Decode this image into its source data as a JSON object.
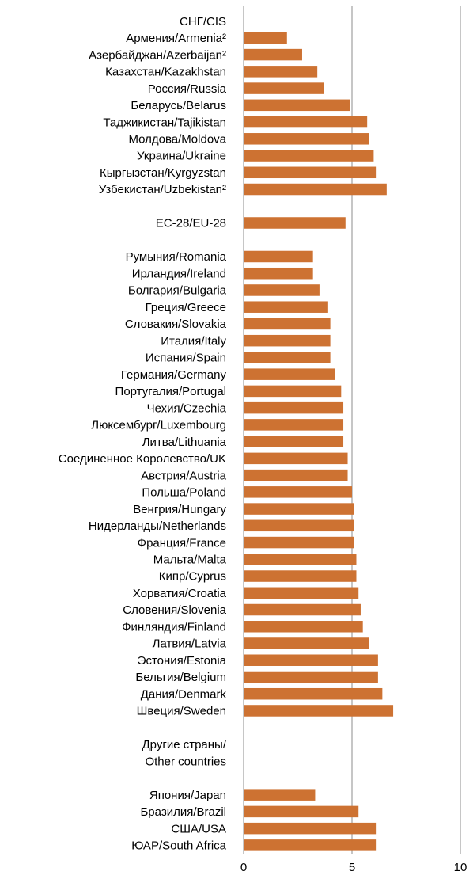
{
  "chart_data": {
    "type": "bar",
    "orientation": "horizontal",
    "bar_color": "#CD7232",
    "grid": true,
    "xlim": [
      0,
      10
    ],
    "xticks": [
      "0",
      "5",
      "10"
    ],
    "rows": [
      {
        "label": "СНГ/CIS",
        "value": null
      },
      {
        "label": "Армения/Armenia²",
        "value": 2.0
      },
      {
        "label": "Азербайджан/Azerbaijan²",
        "value": 2.7
      },
      {
        "label": "Казахстан/Kazakhstan",
        "value": 3.4
      },
      {
        "label": "Россия/Russia",
        "value": 3.7
      },
      {
        "label": "Беларусь/Belarus",
        "value": 4.9
      },
      {
        "label": "Таджикистан/Tajikistan",
        "value": 5.7
      },
      {
        "label": "Молдова/Moldova",
        "value": 5.8
      },
      {
        "label": "Украина/Ukraine",
        "value": 6.0
      },
      {
        "label": "Кыргызстан/Kyrgyzstan",
        "value": 6.1
      },
      {
        "label": "Узбекистан/Uzbekistan²",
        "value": 6.6
      },
      {
        "label": "",
        "value": null
      },
      {
        "label": "ЕС-28/EU-28",
        "value": 4.7
      },
      {
        "label": "",
        "value": null
      },
      {
        "label": "Румыния/Romania",
        "value": 3.2
      },
      {
        "label": "Ирландия/Ireland",
        "value": 3.2
      },
      {
        "label": "Болгария/Bulgaria",
        "value": 3.5
      },
      {
        "label": "Греция/Greece",
        "value": 3.9
      },
      {
        "label": "Словакия/Slovakia",
        "value": 4.0
      },
      {
        "label": "Италия/Italy",
        "value": 4.0
      },
      {
        "label": "Испания/Spain",
        "value": 4.0
      },
      {
        "label": "Германия/Germany",
        "value": 4.2
      },
      {
        "label": "Португалия/Portugal",
        "value": 4.5
      },
      {
        "label": "Чехия/Czechia",
        "value": 4.6
      },
      {
        "label": "Люксембург/Luxembourg",
        "value": 4.6
      },
      {
        "label": "Литва/Lithuania",
        "value": 4.6
      },
      {
        "label": "Соединенное Королевство/UK",
        "value": 4.8
      },
      {
        "label": "Австрия/Austria",
        "value": 4.8
      },
      {
        "label": "Польша/Poland",
        "value": 5.0
      },
      {
        "label": "Венгрия/Hungary",
        "value": 5.1
      },
      {
        "label": "Нидерланды/Netherlands",
        "value": 5.1
      },
      {
        "label": "Франция/France",
        "value": 5.1
      },
      {
        "label": "Мальта/Malta",
        "value": 5.2
      },
      {
        "label": "Кипр/Cyprus",
        "value": 5.2
      },
      {
        "label": "Хорватия/Croatia",
        "value": 5.3
      },
      {
        "label": "Словения/Slovenia",
        "value": 5.4
      },
      {
        "label": "Финляндия/Finland",
        "value": 5.5
      },
      {
        "label": "Латвия/Latvia",
        "value": 5.8
      },
      {
        "label": "Эстония/Estonia",
        "value": 6.2
      },
      {
        "label": "Бельгия/Belgium",
        "value": 6.2
      },
      {
        "label": "Дания/Denmark",
        "value": 6.4
      },
      {
        "label": "Швеция/Sweden",
        "value": 6.9
      },
      {
        "label": "",
        "value": null
      },
      {
        "label": "Другие страны/",
        "value": null
      },
      {
        "label": "Other countries",
        "value": null
      },
      {
        "label": "",
        "value": null
      },
      {
        "label": "Япония/Japan",
        "value": 3.3
      },
      {
        "label": "Бразилия/Brazil",
        "value": 5.3
      },
      {
        "label": "США/USA",
        "value": 6.1
      },
      {
        "label": "ЮАР/South Africa",
        "value": 6.1
      }
    ]
  }
}
